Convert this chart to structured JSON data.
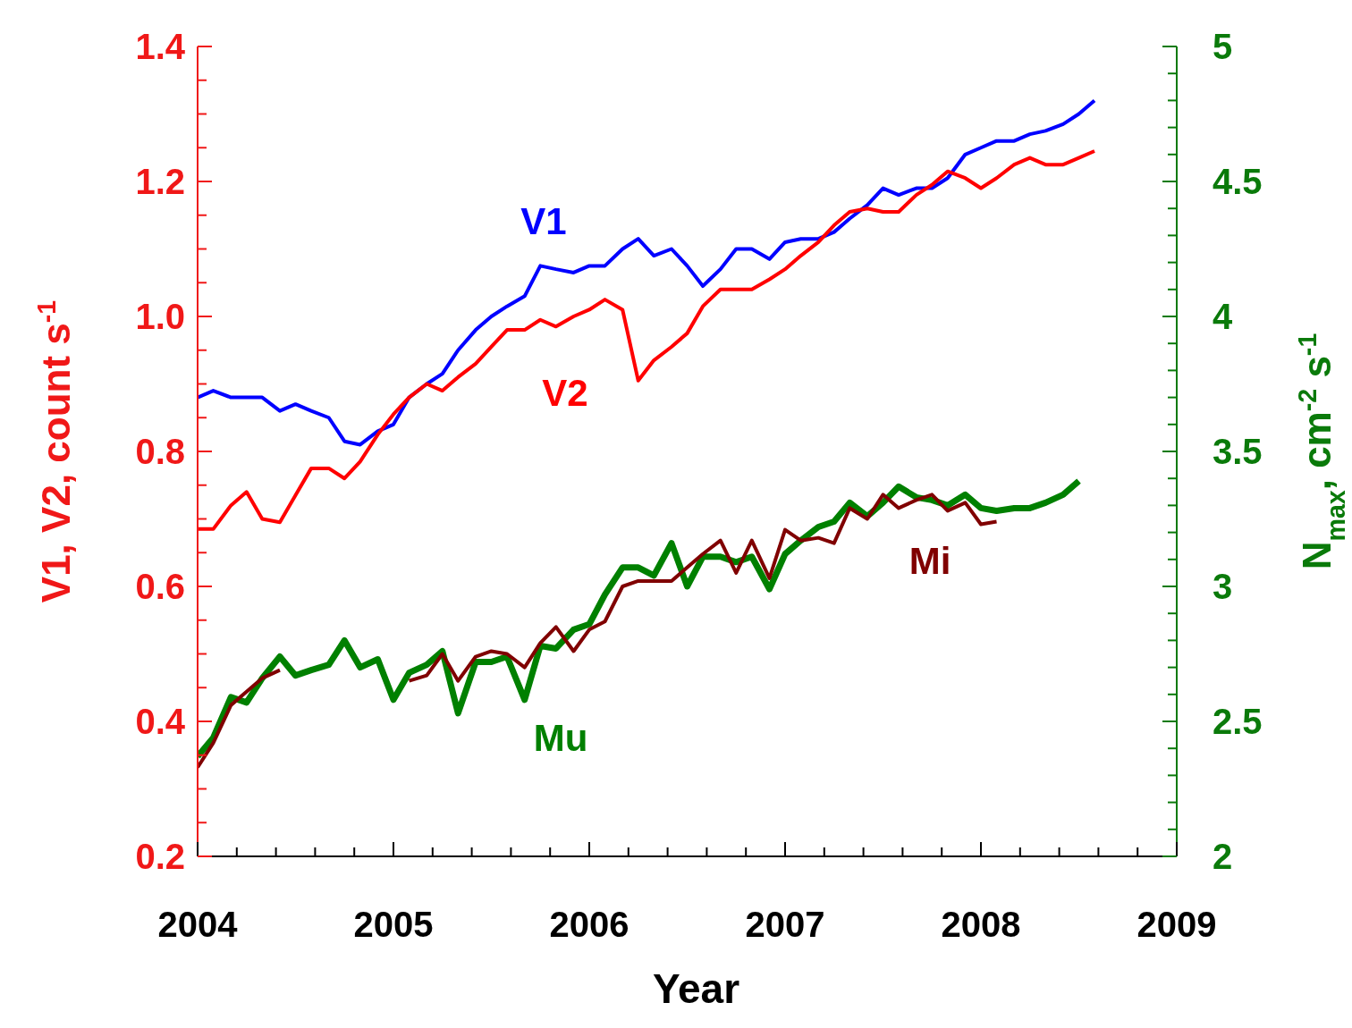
{
  "chart_data": {
    "type": "line",
    "xlabel": "Year",
    "ylabel": "V1, V2, count s$^{-1}$",
    "y2label": "N$_{max}$, cm$^{-2}$ s$^{-1}$",
    "x": [
      2004,
      2004.08,
      2004.17,
      2004.25,
      2004.33,
      2004.42,
      2004.5,
      2004.58,
      2004.67,
      2004.75,
      2004.83,
      2004.92,
      2005,
      2005.08,
      2005.17,
      2005.25,
      2005.33,
      2005.42,
      2005.5,
      2005.58,
      2005.67,
      2005.75,
      2005.83,
      2005.92,
      2006,
      2006.08,
      2006.17,
      2006.25,
      2006.33,
      2006.42,
      2006.5,
      2006.58,
      2006.67,
      2006.75,
      2006.83,
      2006.92,
      2007,
      2007.08,
      2007.17,
      2007.25,
      2007.33,
      2007.42,
      2007.5,
      2007.58,
      2007.67,
      2007.75,
      2007.83,
      2007.92,
      2008,
      2008.08,
      2008.17,
      2008.25,
      2008.33,
      2008.42,
      2008.5,
      2008.58
    ],
    "series": [
      {
        "name": "V1",
        "color": "#0000ff",
        "values": [
          0.88,
          0.89,
          0.88,
          0.88,
          0.88,
          0.86,
          0.87,
          0.86,
          0.85,
          0.815,
          0.81,
          0.83,
          0.84,
          0.88,
          0.9,
          0.915,
          0.95,
          0.98,
          1.0,
          1.015,
          1.03,
          1.075,
          1.07,
          1.065,
          1.075,
          1.075,
          1.1,
          1.115,
          1.09,
          1.1,
          1.075,
          1.045,
          1.07,
          1.1,
          1.1,
          1.085,
          1.11,
          1.115,
          1.115,
          1.125,
          1.145,
          1.165,
          1.19,
          1.18,
          1.19,
          1.19,
          1.205,
          1.24,
          1.25,
          1.26,
          1.26,
          1.27,
          1.275,
          1.285,
          1.3,
          1.32
        ]
      },
      {
        "name": "V2",
        "color": "#ff0000",
        "values": [
          0.685,
          0.685,
          0.72,
          0.74,
          0.7,
          0.695,
          0.735,
          0.775,
          0.775,
          0.76,
          0.785,
          0.825,
          0.855,
          0.88,
          0.9,
          0.89,
          0.91,
          0.93,
          0.955,
          0.98,
          0.98,
          0.995,
          0.985,
          1.0,
          1.01,
          1.025,
          1.01,
          0.905,
          0.935,
          0.955,
          0.975,
          1.015,
          1.04,
          1.04,
          1.04,
          1.055,
          1.07,
          1.09,
          1.11,
          1.135,
          1.155,
          1.16,
          1.155,
          1.155,
          1.18,
          1.195,
          1.215,
          1.205,
          1.19,
          1.205,
          1.225,
          1.235,
          1.225,
          1.225,
          1.235,
          1.245
        ]
      },
      {
        "name": "Mu",
        "color": "#008000",
        "axis": "y2",
        "values": [
          2.37,
          2.44,
          2.59,
          2.57,
          2.66,
          2.74,
          2.67,
          2.69,
          2.71,
          2.8,
          2.7,
          2.73,
          2.58,
          2.68,
          2.71,
          2.76,
          2.53,
          2.72,
          2.72,
          2.74,
          2.58,
          2.78,
          2.77,
          2.84,
          2.86,
          2.97,
          3.07,
          3.07,
          3.04,
          3.16,
          3.0,
          3.11,
          3.11,
          3.09,
          3.11,
          2.99,
          3.12,
          3.17,
          3.22,
          3.24,
          3.31,
          3.26,
          3.31,
          3.37,
          3.33,
          3.32,
          3.3,
          3.34,
          3.29,
          3.28,
          3.29,
          3.29,
          3.31,
          3.34,
          3.39,
          null
        ]
      },
      {
        "name": "Mi",
        "color": "#800000",
        "axis": "y2",
        "values": [
          2.33,
          2.42,
          2.56,
          2.61,
          2.66,
          2.69,
          null,
          null,
          null,
          null,
          null,
          null,
          null,
          2.65,
          2.67,
          2.75,
          2.65,
          2.74,
          2.76,
          2.75,
          2.7,
          2.79,
          2.85,
          2.76,
          2.84,
          2.87,
          3.0,
          3.02,
          3.02,
          3.02,
          3.07,
          3.12,
          3.17,
          3.05,
          3.17,
          3.03,
          3.21,
          3.17,
          3.18,
          3.16,
          3.29,
          3.25,
          3.34,
          3.29,
          3.32,
          3.34,
          3.28,
          3.31,
          3.23,
          3.24,
          null,
          null,
          null,
          null,
          null,
          null
        ]
      }
    ],
    "xlim": [
      2004,
      2009
    ],
    "xticks": [
      2004,
      {
        "value": 2004.2,
        "label": null
      },
      {
        "value": 2004.4,
        "label": null
      },
      {
        "value": 2004.6,
        "label": null
      },
      {
        "value": 2004.8,
        "label": null
      },
      2005,
      {
        "value": 2005.2,
        "label": null
      },
      {
        "value": 2005.4,
        "label": null
      },
      {
        "value": 2005.6,
        "label": null
      },
      {
        "value": 2005.8,
        "label": null
      },
      2006,
      {
        "value": 2006.2,
        "label": null
      },
      {
        "value": 2006.4,
        "label": null
      },
      {
        "value": 2006.6,
        "label": null
      },
      {
        "value": 2006.8,
        "label": null
      },
      2007,
      {
        "value": 2007.2,
        "label": null
      },
      {
        "value": 2007.4,
        "label": null
      },
      {
        "value": 2007.6,
        "label": null
      },
      {
        "value": 2007.8,
        "label": null
      },
      2008,
      {
        "value": 2008.2,
        "label": null
      },
      {
        "value": 2008.4,
        "label": null
      },
      {
        "value": 2008.6,
        "label": null
      },
      {
        "value": 2008.8,
        "label": null
      },
      2009
    ],
    "ylim": [
      0.2,
      1.4
    ],
    "yticks": [
      0.2,
      {
        "value": 0.25,
        "label": null
      },
      {
        "value": 0.3,
        "label": null
      },
      {
        "value": 0.35,
        "label": null
      },
      0.4,
      {
        "value": 0.45,
        "label": null
      },
      {
        "value": 0.5,
        "label": null
      },
      {
        "value": 0.55,
        "label": null
      },
      0.6,
      {
        "value": 0.65,
        "label": null
      },
      {
        "value": 0.7,
        "label": null
      },
      {
        "value": 0.75,
        "label": null
      },
      0.8,
      {
        "value": 0.85,
        "label": null
      },
      {
        "value": 0.9,
        "label": null
      },
      {
        "value": 0.95,
        "label": null
      },
      {
        "value": 1,
        "label": "1.0"
      },
      {
        "value": 1.05,
        "label": null
      },
      {
        "value": 1.1,
        "label": null
      },
      {
        "value": 1.15,
        "label": null
      },
      1.2,
      {
        "value": 1.25,
        "label": null
      },
      {
        "value": 1.3,
        "label": null
      },
      {
        "value": 1.35,
        "label": null
      },
      1.4
    ],
    "y2lim": [
      2,
      5
    ],
    "y2ticks": [
      2,
      {
        "value": 2.1,
        "label": null
      },
      {
        "value": 2.2,
        "label": null
      },
      {
        "value": 2.3,
        "label": null
      },
      {
        "value": 2.4,
        "label": null
      },
      2.5,
      {
        "value": 2.6,
        "label": null
      },
      {
        "value": 2.7,
        "label": null
      },
      {
        "value": 2.8,
        "label": null
      },
      {
        "value": 2.9,
        "label": null
      },
      3,
      {
        "value": 3.1,
        "label": null
      },
      {
        "value": 3.2,
        "label": null
      },
      {
        "value": 3.3,
        "label": null
      },
      {
        "value": 3.4,
        "label": null
      },
      3.5,
      {
        "value": 3.6,
        "label": null
      },
      {
        "value": 3.7,
        "label": null
      },
      {
        "value": 3.8,
        "label": null
      },
      {
        "value": 3.9,
        "label": null
      },
      4,
      {
        "value": 4.1,
        "label": null
      },
      {
        "value": 4.2,
        "label": null
      },
      {
        "value": 4.3,
        "label": null
      },
      {
        "value": 4.4,
        "label": null
      },
      4.5,
      {
        "value": 4.6,
        "label": null
      },
      {
        "value": 4.7,
        "label": null
      },
      {
        "value": 4.8,
        "label": null
      },
      {
        "value": 4.9,
        "label": null
      },
      5
    ]
  }
}
